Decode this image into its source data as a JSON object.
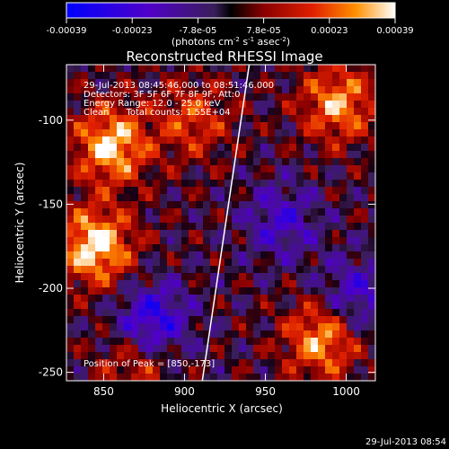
{
  "chart_data": {
    "type": "heatmap",
    "title": "Reconstructed RHESSI Image",
    "xlabel": "Heliocentric X (arcsec)",
    "ylabel": "Heliocentric Y (arcsec)",
    "xlim": [
      827,
      1018
    ],
    "ylim": [
      -255,
      -67
    ],
    "xticks": [
      850,
      900,
      950,
      1000
    ],
    "yticks": [
      -250,
      -200,
      -150,
      -100
    ],
    "colorbar": {
      "ticks": [
        "-0.00039",
        "-0.00023",
        "-7.8e-05",
        "7.8e-05",
        "0.00023",
        "0.00039"
      ],
      "range": [
        -0.00039,
        0.00039
      ],
      "unit_prefix": "(photons cm",
      "unit_exp1": "-2",
      "unit_mid": " s",
      "unit_exp2": "-1",
      "unit_mid2": " asec",
      "unit_exp3": "-2",
      "unit_suffix": ")"
    },
    "annotations": [
      "29-Jul-2013 08:45:46.000 to 08:51:46.000",
      "Detectors: 3F 5F 6F 7F 8F 9F, Att:0",
      "Energy Range: 12.0 - 25.0 keV",
      "Clean      Total counts: 1.55E+04"
    ],
    "peak_label": "Position of Peak = [850,-173]",
    "limb_line": [
      [
        911,
        -255
      ],
      [
        940,
        -67
      ]
    ],
    "hot_spots": [
      {
        "x": 855,
        "y": -115,
        "v": 0.00036
      },
      {
        "x": 845,
        "y": -175,
        "v": 0.00039
      },
      {
        "x": 985,
        "y": -230,
        "v": 0.00032
      },
      {
        "x": 995,
        "y": -90,
        "v": 0.0003
      },
      {
        "x": 905,
        "y": -100,
        "v": 0.0002
      },
      {
        "x": 870,
        "y": -245,
        "v": 0.00018
      }
    ],
    "cold_spots": [
      {
        "x": 880,
        "y": -220,
        "v": -0.0003
      },
      {
        "x": 960,
        "y": -160,
        "v": -0.0002
      },
      {
        "x": 1005,
        "y": -205,
        "v": -0.00022
      }
    ]
  },
  "footer_timestamp": "29-Jul-2013 08:54"
}
